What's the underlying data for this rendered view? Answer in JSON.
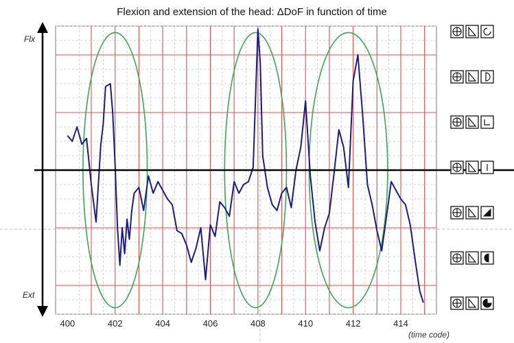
{
  "chart_data": {
    "type": "line",
    "title": "Flexion and extension of the head: ΔDoF in function of time",
    "xlabel": "(time code)",
    "ylabel_top": "Flx",
    "ylabel_bottom": "Ext",
    "xlim": [
      399.5,
      415.5
    ],
    "ylim": [
      -5,
      5
    ],
    "x_ticks": [
      400,
      402,
      404,
      406,
      408,
      410,
      412,
      414
    ],
    "grid": true,
    "line_color": "#1a1a8c",
    "ellipse_color": "#3aa655",
    "highlight_ellipses": [
      {
        "cx": 402.0,
        "cy": 0,
        "rx": 1.35,
        "ry": 5
      },
      {
        "cx": 407.9,
        "cy": 0,
        "rx": 1.3,
        "ry": 5
      },
      {
        "cx": 411.8,
        "cy": 0,
        "rx": 1.65,
        "ry": 5
      }
    ],
    "series": [
      {
        "x": [
          400.0,
          400.2,
          400.4,
          400.6,
          400.8,
          401.0,
          401.2,
          401.4,
          401.5,
          401.6,
          401.8,
          401.9,
          402.0,
          402.1,
          402.2,
          402.3,
          402.4,
          402.5,
          402.6,
          402.7,
          402.8,
          403.0,
          403.2,
          403.4,
          403.6,
          403.8,
          404.0,
          404.2,
          404.4,
          404.6,
          404.8,
          405.0,
          405.2,
          405.4,
          405.6,
          405.8,
          406.0,
          406.2,
          406.4,
          406.6,
          406.8,
          407.0,
          407.2,
          407.4,
          407.6,
          407.8,
          408.0,
          408.1,
          408.2,
          408.4,
          408.6,
          408.8,
          409.0,
          409.2,
          409.4,
          409.6,
          409.8,
          410.0,
          410.2,
          410.4,
          410.6,
          410.8,
          411.0,
          411.2,
          411.4,
          411.6,
          411.8,
          412.0,
          412.2,
          412.4,
          412.6,
          412.8,
          413.0,
          413.2,
          413.4,
          413.6,
          413.8,
          414.0,
          414.2,
          414.4,
          414.6,
          414.8,
          414.95
        ],
        "values": [
          1.2,
          1.0,
          1.5,
          0.9,
          1.1,
          -0.5,
          -1.8,
          0.9,
          1.6,
          2.9,
          3.0,
          2.0,
          0.2,
          -2.0,
          -3.3,
          -2.0,
          -2.9,
          -1.7,
          -2.4,
          -1.4,
          -0.8,
          -0.6,
          -1.4,
          -0.2,
          -0.8,
          -0.4,
          -0.7,
          -1.0,
          -1.2,
          -2.1,
          -2.2,
          -2.6,
          -3.2,
          -2.7,
          -2.0,
          -3.8,
          -1.9,
          -2.3,
          -1.1,
          -1.3,
          -1.6,
          -0.4,
          -0.8,
          -0.5,
          -0.4,
          0.1,
          4.9,
          3.7,
          0.5,
          -0.6,
          -1.2,
          -1.4,
          -0.8,
          -0.6,
          -1.3,
          0.0,
          0.8,
          2.4,
          -0.2,
          -1.8,
          -2.8,
          -2.0,
          -1.5,
          -0.1,
          1.4,
          0.8,
          -0.6,
          3.1,
          4.0,
          1.9,
          -0.5,
          -1.2,
          -2.1,
          -2.8,
          -1.6,
          -0.4,
          -0.7,
          -1.0,
          -1.2,
          -1.9,
          -3.1,
          -4.2,
          -4.6
        ]
      }
    ],
    "icon_rows": [
      "rotation-3-4-icon",
      "rotation-half-icon",
      "rotation-corner-icon",
      "rotation-vertical-icon",
      "rotation-triangle-icon",
      "rotation-half-filled-icon",
      "rotation-3-4-filled-icon"
    ]
  }
}
